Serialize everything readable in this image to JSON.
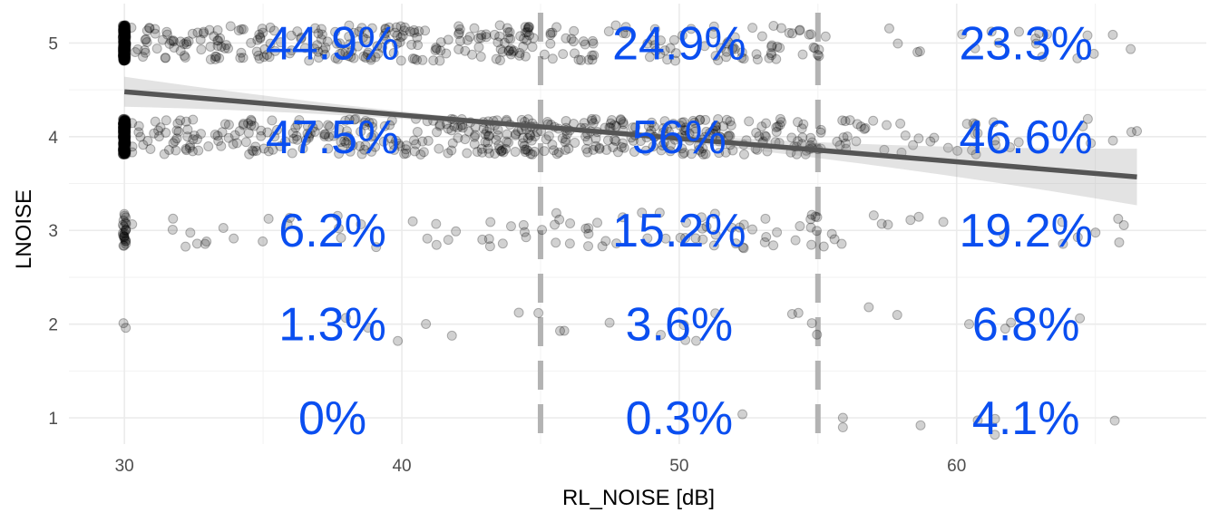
{
  "chart_data": {
    "type": "scatter",
    "title": "",
    "xlabel": "RL_NOISE [dB]",
    "ylabel": "LNOISE",
    "xlim": [
      28,
      69
    ],
    "ylim": [
      0.72,
      5.42
    ],
    "x_ticks": [
      30,
      40,
      50,
      60
    ],
    "y_ticks": [
      1,
      2,
      3,
      4,
      5
    ],
    "grid": true,
    "jitter": true,
    "point_color": "#000000",
    "point_opacity": 0.18,
    "trend_line": {
      "method": "linear",
      "x": [
        30,
        66.5
      ],
      "y": [
        4.48,
        3.57
      ],
      "color": "#555555",
      "confidence_band": true
    },
    "thresholds": {
      "x": [
        45,
        55
      ],
      "style": "dashed",
      "color": "#b3b3b3"
    },
    "bins": [
      {
        "x_range": [
          30,
          45
        ],
        "label_x": 37.5
      },
      {
        "x_range": [
          45,
          55
        ],
        "label_x": 50
      },
      {
        "x_range": [
          55,
          66.5
        ],
        "label_x": 62.5
      }
    ],
    "percentage_labels": [
      {
        "bin": 0,
        "y": 5,
        "text": "44.9%"
      },
      {
        "bin": 1,
        "y": 5,
        "text": "24.9%"
      },
      {
        "bin": 2,
        "y": 5,
        "text": "23.3%"
      },
      {
        "bin": 0,
        "y": 4,
        "text": "47.5%"
      },
      {
        "bin": 1,
        "y": 4,
        "text": "56%"
      },
      {
        "bin": 2,
        "y": 4,
        "text": "46.6%"
      },
      {
        "bin": 0,
        "y": 3,
        "text": "6.2%"
      },
      {
        "bin": 1,
        "y": 3,
        "text": "15.2%"
      },
      {
        "bin": 2,
        "y": 3,
        "text": "19.2%"
      },
      {
        "bin": 0,
        "y": 2,
        "text": "1.3%"
      },
      {
        "bin": 1,
        "y": 2,
        "text": "3.6%"
      },
      {
        "bin": 2,
        "y": 2,
        "text": "6.8%"
      },
      {
        "bin": 0,
        "y": 1,
        "text": "0%"
      },
      {
        "bin": 1,
        "y": 1,
        "text": "0.3%"
      },
      {
        "bin": 2,
        "y": 1,
        "text": "4.1%"
      }
    ],
    "label_color": "#0a4ef0",
    "point_counts": {
      "y5": {
        "at30": 260,
        "b1": 230,
        "b2": 85,
        "b3": 22
      },
      "y4": {
        "at30": 270,
        "b1": 250,
        "b2": 190,
        "b3": 45
      },
      "y3": {
        "at30": 24,
        "b1": 34,
        "b2": 52,
        "b3": 18
      },
      "y2": {
        "at30": 2,
        "b1": 7,
        "b2": 12,
        "b3": 6
      },
      "y1": {
        "at30": 0,
        "b1": 0,
        "b2": 1,
        "b3": 4
      }
    }
  }
}
